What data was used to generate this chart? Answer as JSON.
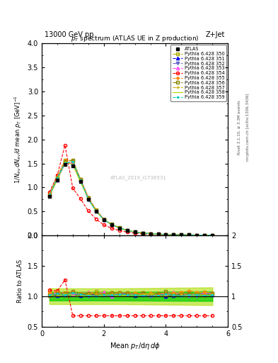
{
  "title_left": "13000 GeV pp",
  "title_right": "Z+Jet",
  "plot_title": "p_{T} spectrum (ATLAS UE in Z production)",
  "xlabel": "Mean p_{T}/d\\eta d\\phi",
  "ylabel_main": "1/N_{ev} dN_{ev}/d mean p_{T} [GeV]^{-1}",
  "ylabel_ratio": "Ratio to ATLAS",
  "watermark": "ATLAS_2019_I1736531",
  "right_label": "Rivet 3.1.10, ≥ 3.3M events",
  "right_label2": "mcplots.cern.ch [arXiv:1306.3436]",
  "xlim": [
    0,
    6
  ],
  "ylim_main": [
    0,
    4
  ],
  "ylim_ratio": [
    0.5,
    2.0
  ],
  "mc_colors": [
    "#aaaa00",
    "#0000ee",
    "#6666cc",
    "#ff44ff",
    "#ff0000",
    "#ff8800",
    "#888800",
    "#ccaa00",
    "#aadd00",
    "#00cccc"
  ],
  "mc_markers": [
    "s",
    "^",
    "v",
    "^",
    "o",
    "*",
    "s",
    "+",
    "None",
    "."
  ],
  "mc_linestyles": [
    "--",
    "--",
    "-.",
    "--",
    "--",
    "--",
    "-.",
    "--",
    "-",
    "--"
  ],
  "mc_filleds": [
    false,
    true,
    true,
    false,
    false,
    true,
    false,
    true,
    false,
    true
  ],
  "mc_labels": [
    "Pythia 6.428 350",
    "Pythia 6.428 351",
    "Pythia 6.428 352",
    "Pythia 6.428 353",
    "Pythia 6.428 354",
    "Pythia 6.428 355",
    "Pythia 6.428 356",
    "Pythia 6.428 357",
    "Pythia 6.428 358",
    "Pythia 6.428 359"
  ],
  "band_color_inner": "#00cc00",
  "band_color_outer": "#aadd00",
  "band_alpha_inner": 0.7,
  "band_alpha_outer": 0.6,
  "atlas_x": [
    0.25,
    0.5,
    0.75,
    1.0,
    1.25,
    1.5,
    1.75,
    2.0,
    2.25,
    2.5,
    2.75,
    3.0,
    3.25,
    3.5,
    3.75,
    4.0,
    4.25,
    4.5,
    4.75,
    5.0,
    5.25,
    5.5
  ],
  "atlas_y": [
    0.82,
    1.15,
    1.48,
    1.45,
    1.12,
    0.75,
    0.5,
    0.32,
    0.22,
    0.15,
    0.1,
    0.068,
    0.048,
    0.035,
    0.025,
    0.018,
    0.014,
    0.01,
    0.008,
    0.006,
    0.005,
    0.004
  ]
}
